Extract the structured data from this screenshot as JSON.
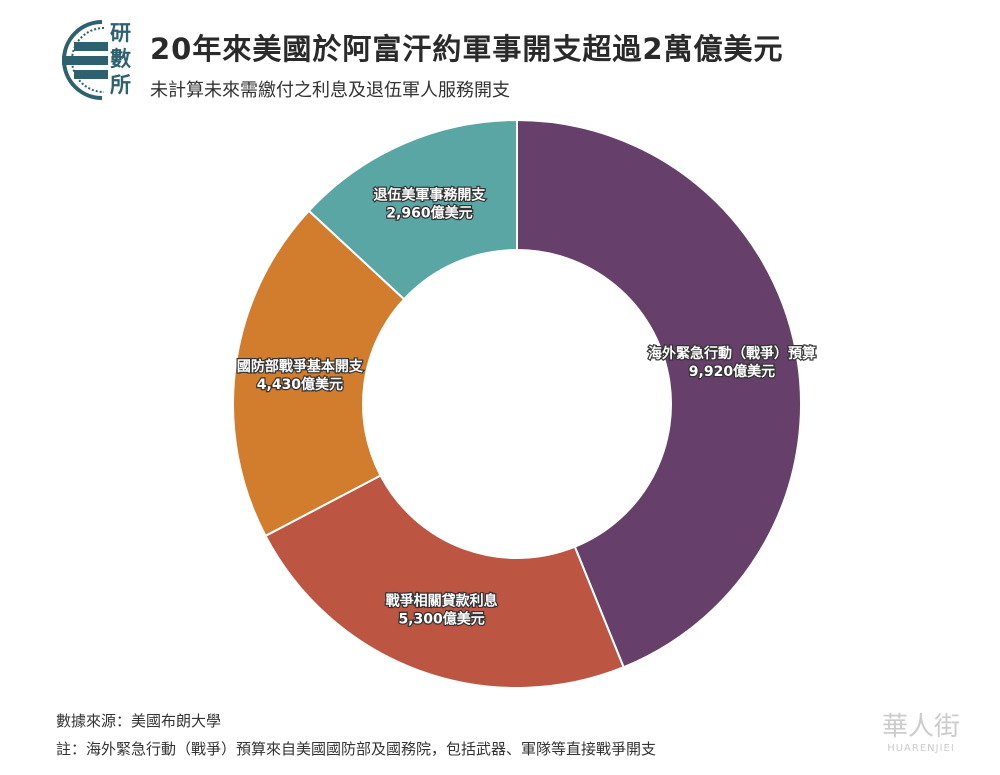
{
  "logo": {
    "text": "研數所"
  },
  "header": {
    "title": "20年來美國於阿富汗約軍事開支超過2萬億美元",
    "subtitle": "未計算未來需繳付之利息及退伍軍人服務開支"
  },
  "chart_data": {
    "type": "pie",
    "donut": true,
    "title": "20年來美國於阿富汗約軍事開支超過2萬億美元",
    "unit": "億美元",
    "slices": [
      {
        "name": "海外緊急行動（戰爭）預算",
        "value": 9920,
        "value_label": "9,920億美元",
        "color": "#663f6a"
      },
      {
        "name": "戰爭相關貸款利息",
        "value": 5300,
        "value_label": "5,300億美元",
        "color": "#bc5642"
      },
      {
        "name": "國防部戰爭基本開支",
        "value": 4430,
        "value_label": "4,430億美元",
        "color": "#d17d2d"
      },
      {
        "name": "退伍美軍事務開支",
        "value": 2960,
        "value_label": "2,960億美元",
        "color": "#5aa6a5"
      }
    ]
  },
  "footer": {
    "source": "數據來源：美國布朗大學",
    "note": "註：海外緊急行動（戰爭）預算來自美國國防部及國務院，包括武器、軍隊等直接戰爭開支"
  },
  "watermark": {
    "text": "華人街",
    "sub": "HUARENJIEI"
  }
}
